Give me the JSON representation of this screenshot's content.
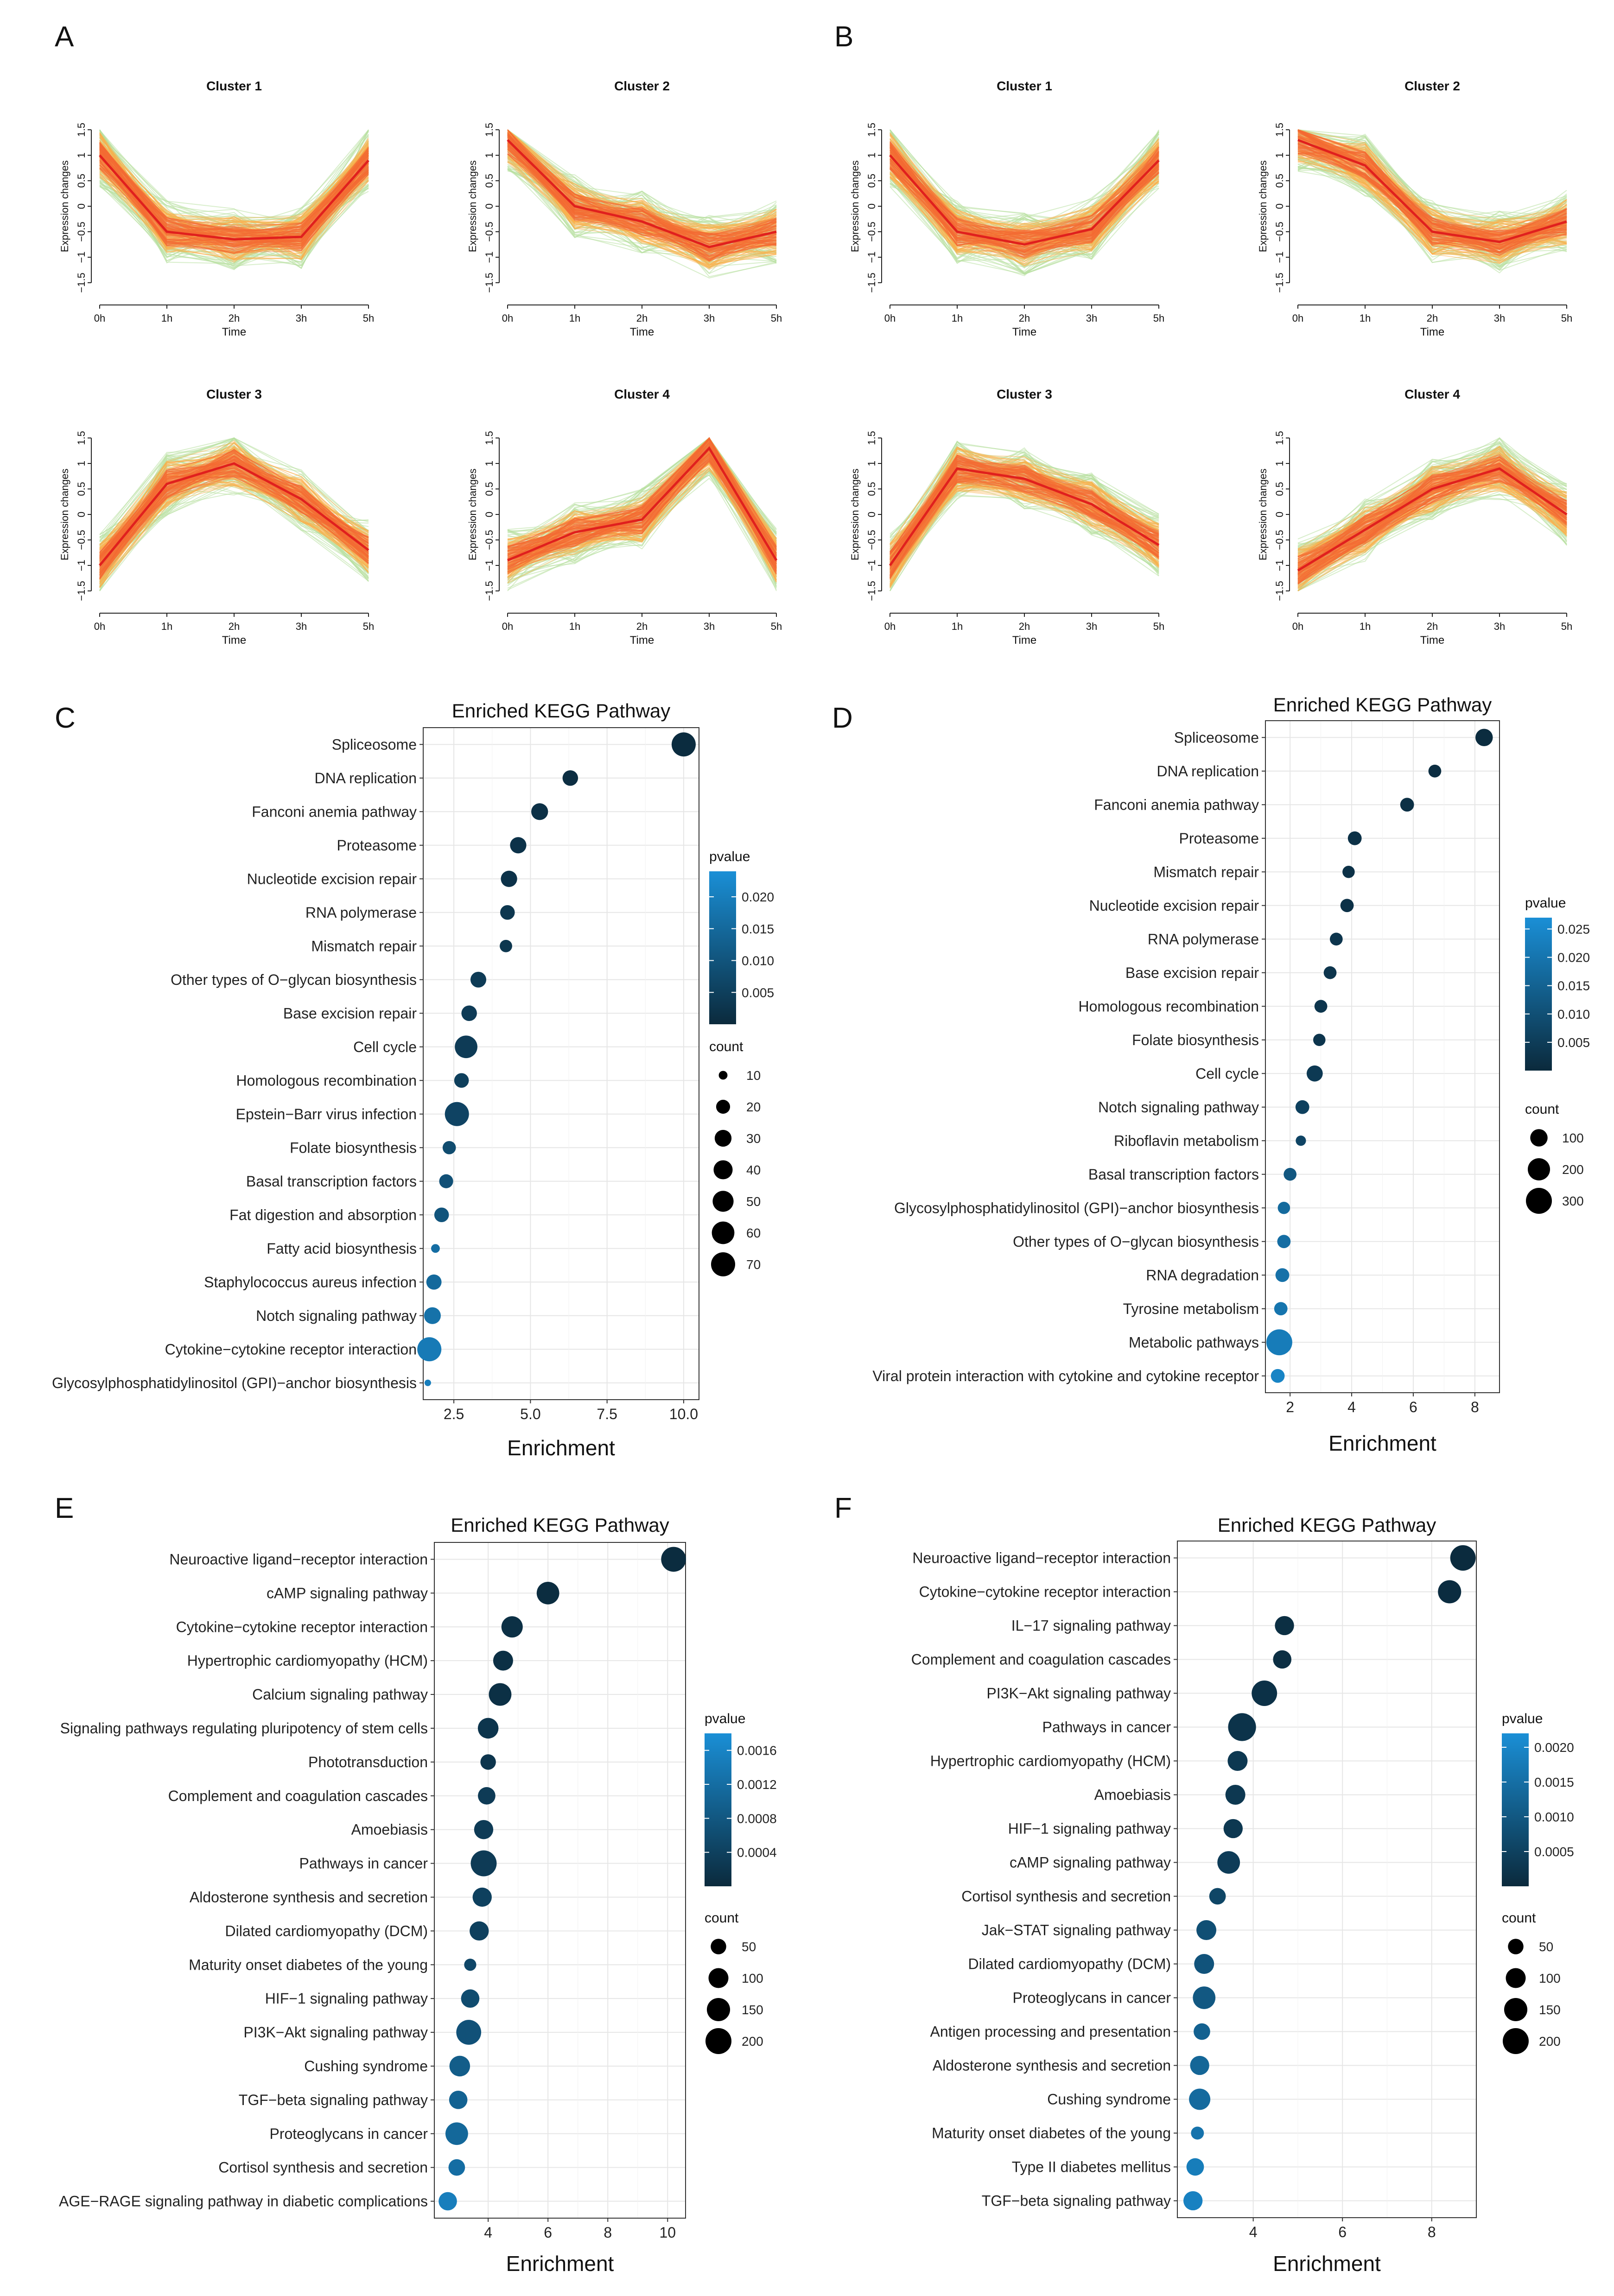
{
  "panels": [
    "A",
    "B",
    "C",
    "D",
    "E",
    "F"
  ],
  "cluster_common": {
    "ylabel": "Expression changes",
    "xlabel": "Time",
    "xticks": [
      "0h",
      "1h",
      "2h",
      "3h",
      "5h"
    ],
    "yticks": [
      "−1.5",
      "−1",
      "−0.5",
      "0",
      "0.5",
      "1",
      "1.5"
    ],
    "line_colors": {
      "center": "#e0201e",
      "inner": "#f36a33",
      "middle": "#fbb04a",
      "outer": "#b8e0a0"
    }
  },
  "colors": {
    "pvalue_high": "#1a8fd6",
    "pvalue_low": "#0b2a3c",
    "grid": "#e6e6e6",
    "panel_border": "#333333"
  },
  "chart_data": [
    {
      "panel": "A",
      "type": "line",
      "title": "Cluster 1",
      "xlabel": "Time",
      "ylabel": "Expression changes",
      "categories": [
        "0h",
        "1h",
        "2h",
        "3h",
        "5h"
      ],
      "ylim": [
        -1.5,
        1.5
      ],
      "values": [
        1.0,
        -0.5,
        -0.65,
        -0.6,
        0.9
      ]
    },
    {
      "panel": "A",
      "type": "line",
      "title": "Cluster 2",
      "xlabel": "Time",
      "ylabel": "Expression changes",
      "categories": [
        "0h",
        "1h",
        "2h",
        "3h",
        "5h"
      ],
      "ylim": [
        -1.5,
        1.5
      ],
      "values": [
        1.3,
        0.0,
        -0.3,
        -0.8,
        -0.5
      ]
    },
    {
      "panel": "A",
      "type": "line",
      "title": "Cluster 3",
      "xlabel": "Time",
      "ylabel": "Expression changes",
      "categories": [
        "0h",
        "1h",
        "2h",
        "3h",
        "5h"
      ],
      "ylim": [
        -1.5,
        1.5
      ],
      "values": [
        -1.0,
        0.6,
        1.0,
        0.3,
        -0.7
      ]
    },
    {
      "panel": "A",
      "type": "line",
      "title": "Cluster 4",
      "xlabel": "Time",
      "ylabel": "Expression changes",
      "categories": [
        "0h",
        "1h",
        "2h",
        "3h",
        "5h"
      ],
      "ylim": [
        -1.5,
        1.5
      ],
      "values": [
        -0.9,
        -0.35,
        -0.1,
        1.3,
        -0.9
      ]
    },
    {
      "panel": "B",
      "type": "line",
      "title": "Cluster 1",
      "xlabel": "Time",
      "ylabel": "Expression changes",
      "categories": [
        "0h",
        "1h",
        "2h",
        "3h",
        "5h"
      ],
      "ylim": [
        -1.5,
        1.5
      ],
      "values": [
        1.0,
        -0.5,
        -0.75,
        -0.45,
        0.9
      ]
    },
    {
      "panel": "B",
      "type": "line",
      "title": "Cluster 2",
      "xlabel": "Time",
      "ylabel": "Expression changes",
      "categories": [
        "0h",
        "1h",
        "2h",
        "3h",
        "5h"
      ],
      "ylim": [
        -1.5,
        1.5
      ],
      "values": [
        1.3,
        0.8,
        -0.5,
        -0.7,
        -0.3
      ]
    },
    {
      "panel": "B",
      "type": "line",
      "title": "Cluster 3",
      "xlabel": "Time",
      "ylabel": "Expression changes",
      "categories": [
        "0h",
        "1h",
        "2h",
        "3h",
        "5h"
      ],
      "ylim": [
        -1.5,
        1.5
      ],
      "values": [
        -1.0,
        0.9,
        0.7,
        0.2,
        -0.6
      ]
    },
    {
      "panel": "B",
      "type": "line",
      "title": "Cluster 4",
      "xlabel": "Time",
      "ylabel": "Expression changes",
      "categories": [
        "0h",
        "1h",
        "2h",
        "3h",
        "5h"
      ],
      "ylim": [
        -1.5,
        1.5
      ],
      "values": [
        -1.1,
        -0.3,
        0.5,
        0.9,
        0.0
      ]
    },
    {
      "panel": "C",
      "type": "scatter",
      "title": "Enriched KEGG Pathway",
      "xlabel": "Enrichment",
      "xlim": [
        1.5,
        10.5
      ],
      "xticks": [
        2.5,
        5.0,
        7.5,
        10.0
      ],
      "xtick_labels": [
        "2.5",
        "5.0",
        "7.5",
        "10.0"
      ],
      "pvalue_range": [
        0,
        0.024
      ],
      "pvalue_ticks": [
        0.02,
        0.015,
        0.01,
        0.005
      ],
      "pvalue_tick_labels": [
        "0.020",
        "0.015",
        "0.010",
        "0.005"
      ],
      "count_legend": [
        10,
        20,
        30,
        40,
        50,
        60,
        70
      ],
      "count_scale": [
        10,
        70
      ],
      "pathways": [
        {
          "name": "Spliceosome",
          "enrichment": 10.0,
          "count": 70,
          "pvalue": 0.0005
        },
        {
          "name": "DNA replication",
          "enrichment": 6.3,
          "count": 25,
          "pvalue": 0.001
        },
        {
          "name": "Fanconi anemia pathway",
          "enrichment": 5.3,
          "count": 30,
          "pvalue": 0.0015
        },
        {
          "name": "Proteasome",
          "enrichment": 4.6,
          "count": 28,
          "pvalue": 0.002
        },
        {
          "name": "Nucleotide excision repair",
          "enrichment": 4.3,
          "count": 28,
          "pvalue": 0.002
        },
        {
          "name": "RNA polymerase",
          "enrichment": 4.25,
          "count": 22,
          "pvalue": 0.003
        },
        {
          "name": "Mismatch repair",
          "enrichment": 4.2,
          "count": 16,
          "pvalue": 0.003
        },
        {
          "name": "Other types of O−glycan biosynthesis",
          "enrichment": 3.3,
          "count": 26,
          "pvalue": 0.004
        },
        {
          "name": "Base excision repair",
          "enrichment": 3.0,
          "count": 25,
          "pvalue": 0.004
        },
        {
          "name": "Cell cycle",
          "enrichment": 2.9,
          "count": 60,
          "pvalue": 0.004
        },
        {
          "name": "Homologous recombination",
          "enrichment": 2.75,
          "count": 22,
          "pvalue": 0.005
        },
        {
          "name": "Epstein−Barr virus infection",
          "enrichment": 2.6,
          "count": 70,
          "pvalue": 0.006
        },
        {
          "name": "Folate biosynthesis",
          "enrichment": 2.35,
          "count": 18,
          "pvalue": 0.008
        },
        {
          "name": "Basal transcription factors",
          "enrichment": 2.25,
          "count": 20,
          "pvalue": 0.009
        },
        {
          "name": "Fat digestion and absorption",
          "enrichment": 2.1,
          "count": 22,
          "pvalue": 0.01
        },
        {
          "name": "Fatty acid biosynthesis",
          "enrichment": 1.9,
          "count": 10,
          "pvalue": 0.016
        },
        {
          "name": "Staphylococcus aureus infection",
          "enrichment": 1.85,
          "count": 24,
          "pvalue": 0.015
        },
        {
          "name": "Notch signaling pathway",
          "enrichment": 1.8,
          "count": 30,
          "pvalue": 0.017
        },
        {
          "name": "Cytokine−cytokine receptor interaction",
          "enrichment": 1.7,
          "count": 70,
          "pvalue": 0.019
        },
        {
          "name": "Glycosylphosphatidylinositol (GPI)−anchor biosynthesis",
          "enrichment": 1.65,
          "count": 8,
          "pvalue": 0.02
        }
      ]
    },
    {
      "panel": "D",
      "type": "scatter",
      "title": "Enriched KEGG Pathway",
      "xlabel": "Enrichment",
      "xlim": [
        1.2,
        8.8
      ],
      "xticks": [
        2,
        4,
        6,
        8
      ],
      "xtick_labels": [
        "2",
        "4",
        "6",
        "8"
      ],
      "pvalue_range": [
        0,
        0.027
      ],
      "pvalue_ticks": [
        0.025,
        0.02,
        0.015,
        0.01,
        0.005
      ],
      "pvalue_tick_labels": [
        "0.025",
        "0.020",
        "0.015",
        "0.010",
        "0.005"
      ],
      "count_legend": [
        100,
        200,
        300
      ],
      "count_scale": [
        10,
        300
      ],
      "pathways": [
        {
          "name": "Spliceosome",
          "enrichment": 8.3,
          "count": 100,
          "pvalue": 0.0005
        },
        {
          "name": "DNA replication",
          "enrichment": 6.7,
          "count": 40,
          "pvalue": 0.001
        },
        {
          "name": "Fanconi anemia pathway",
          "enrichment": 5.8,
          "count": 50,
          "pvalue": 0.0015
        },
        {
          "name": "Proteasome",
          "enrichment": 4.1,
          "count": 50,
          "pvalue": 0.002
        },
        {
          "name": "Mismatch repair",
          "enrichment": 3.9,
          "count": 35,
          "pvalue": 0.002
        },
        {
          "name": "Nucleotide excision repair",
          "enrichment": 3.85,
          "count": 45,
          "pvalue": 0.002
        },
        {
          "name": "RNA polymerase",
          "enrichment": 3.5,
          "count": 40,
          "pvalue": 0.003
        },
        {
          "name": "Base excision repair",
          "enrichment": 3.3,
          "count": 40,
          "pvalue": 0.003
        },
        {
          "name": "Homologous recombination",
          "enrichment": 3.0,
          "count": 40,
          "pvalue": 0.003
        },
        {
          "name": "Folate biosynthesis",
          "enrichment": 2.95,
          "count": 35,
          "pvalue": 0.003
        },
        {
          "name": "Cell cycle",
          "enrichment": 2.8,
          "count": 80,
          "pvalue": 0.004
        },
        {
          "name": "Notch signaling pathway",
          "enrichment": 2.4,
          "count": 50,
          "pvalue": 0.006
        },
        {
          "name": "Riboflavin metabolism",
          "enrichment": 2.35,
          "count": 20,
          "pvalue": 0.007
        },
        {
          "name": "Basal transcription factors",
          "enrichment": 2.0,
          "count": 40,
          "pvalue": 0.012
        },
        {
          "name": "Glycosylphosphatidylinositol (GPI)−anchor biosynthesis",
          "enrichment": 1.8,
          "count": 35,
          "pvalue": 0.017
        },
        {
          "name": "Other types of O−glycan biosynthesis",
          "enrichment": 1.8,
          "count": 45,
          "pvalue": 0.018
        },
        {
          "name": "RNA degradation",
          "enrichment": 1.75,
          "count": 50,
          "pvalue": 0.019
        },
        {
          "name": "Tyrosine metabolism",
          "enrichment": 1.7,
          "count": 45,
          "pvalue": 0.02
        },
        {
          "name": "Metabolic pathways",
          "enrichment": 1.65,
          "count": 300,
          "pvalue": 0.022
        },
        {
          "name": "Viral protein interaction with cytokine and cytokine receptor",
          "enrichment": 1.6,
          "count": 50,
          "pvalue": 0.024
        }
      ]
    },
    {
      "panel": "E",
      "type": "scatter",
      "title": "Enriched KEGG Pathway",
      "xlabel": "Enrichment",
      "xlim": [
        2.2,
        10.6
      ],
      "xticks": [
        4,
        6,
        8,
        10
      ],
      "xtick_labels": [
        "4",
        "6",
        "8",
        "10"
      ],
      "pvalue_range": [
        0,
        0.0018
      ],
      "pvalue_ticks": [
        0.0016,
        0.0012,
        0.0008,
        0.0004
      ],
      "pvalue_tick_labels": [
        "0.0016",
        "0.0012",
        "0.0008",
        "0.0004"
      ],
      "count_legend": [
        50,
        100,
        150,
        200
      ],
      "count_scale": [
        10,
        200
      ],
      "pathways": [
        {
          "name": "Neuroactive ligand−receptor interaction",
          "enrichment": 10.2,
          "count": 180,
          "pvalue": 3e-05
        },
        {
          "name": "cAMP signaling pathway",
          "enrichment": 6.0,
          "count": 140,
          "pvalue": 5e-05
        },
        {
          "name": "Cytokine−cytokine receptor interaction",
          "enrichment": 4.8,
          "count": 120,
          "pvalue": 0.0001
        },
        {
          "name": "Hypertrophic cardiomyopathy (HCM)",
          "enrichment": 4.5,
          "count": 100,
          "pvalue": 0.0001
        },
        {
          "name": "Calcium signaling pathway",
          "enrichment": 4.4,
          "count": 140,
          "pvalue": 0.0001
        },
        {
          "name": "Signaling pathways regulating pluripotency of stem cells",
          "enrichment": 4.0,
          "count": 110,
          "pvalue": 0.0002
        },
        {
          "name": "Phototransduction",
          "enrichment": 4.0,
          "count": 50,
          "pvalue": 0.0002
        },
        {
          "name": "Complement and coagulation cascades",
          "enrichment": 3.95,
          "count": 70,
          "pvalue": 0.0003
        },
        {
          "name": "Amoebiasis",
          "enrichment": 3.85,
          "count": 90,
          "pvalue": 0.0003
        },
        {
          "name": "Pathways in cancer",
          "enrichment": 3.85,
          "count": 200,
          "pvalue": 0.0003
        },
        {
          "name": "Aldosterone synthesis and secretion",
          "enrichment": 3.8,
          "count": 90,
          "pvalue": 0.0004
        },
        {
          "name": "Dilated cardiomyopathy (DCM)",
          "enrichment": 3.7,
          "count": 90,
          "pvalue": 0.0004
        },
        {
          "name": "Maturity onset diabetes of the young",
          "enrichment": 3.4,
          "count": 25,
          "pvalue": 0.0005
        },
        {
          "name": "HIF−1 signaling pathway",
          "enrichment": 3.4,
          "count": 80,
          "pvalue": 0.0006
        },
        {
          "name": "PI3K−Akt signaling pathway",
          "enrichment": 3.35,
          "count": 180,
          "pvalue": 0.0007
        },
        {
          "name": "Cushing syndrome",
          "enrichment": 3.05,
          "count": 110,
          "pvalue": 0.0009
        },
        {
          "name": "TGF−beta signaling pathway",
          "enrichment": 3.0,
          "count": 80,
          "pvalue": 0.001
        },
        {
          "name": "Proteoglycans in cancer",
          "enrichment": 2.95,
          "count": 140,
          "pvalue": 0.0011
        },
        {
          "name": "Cortisol synthesis and secretion",
          "enrichment": 2.95,
          "count": 60,
          "pvalue": 0.0012
        },
        {
          "name": "AGE−RAGE signaling pathway in diabetic complications",
          "enrichment": 2.65,
          "count": 80,
          "pvalue": 0.0015
        }
      ]
    },
    {
      "panel": "F",
      "type": "scatter",
      "title": "Enriched KEGG Pathway",
      "xlabel": "Enrichment",
      "xlim": [
        2.3,
        9.0
      ],
      "xticks": [
        4,
        6,
        8
      ],
      "xtick_labels": [
        "4",
        "6",
        "8"
      ],
      "pvalue_range": [
        0,
        0.0022
      ],
      "pvalue_ticks": [
        0.002,
        0.0015,
        0.001,
        0.0005
      ],
      "pvalue_tick_labels": [
        "0.0020",
        "0.0015",
        "0.0010",
        "0.0005"
      ],
      "count_legend": [
        50,
        100,
        150,
        200
      ],
      "count_scale": [
        10,
        200
      ],
      "pathways": [
        {
          "name": "Neuroactive ligand−receptor interaction",
          "enrichment": 8.7,
          "count": 190,
          "pvalue": 3e-05
        },
        {
          "name": "Cytokine−cytokine receptor interaction",
          "enrichment": 8.4,
          "count": 150,
          "pvalue": 5e-05
        },
        {
          "name": "IL−17 signaling pathway",
          "enrichment": 4.7,
          "count": 90,
          "pvalue": 0.0001
        },
        {
          "name": "Complement and coagulation cascades",
          "enrichment": 4.65,
          "count": 80,
          "pvalue": 0.0001
        },
        {
          "name": "PI3K−Akt signaling pathway",
          "enrichment": 4.25,
          "count": 190,
          "pvalue": 0.00015
        },
        {
          "name": "Pathways in cancer",
          "enrichment": 3.75,
          "count": 240,
          "pvalue": 0.0002
        },
        {
          "name": "Hypertrophic cardiomyopathy (HCM)",
          "enrichment": 3.65,
          "count": 100,
          "pvalue": 0.0003
        },
        {
          "name": "Amoebiasis",
          "enrichment": 3.6,
          "count": 100,
          "pvalue": 0.0003
        },
        {
          "name": "HIF−1 signaling pathway",
          "enrichment": 3.55,
          "count": 90,
          "pvalue": 0.0003
        },
        {
          "name": "cAMP signaling pathway",
          "enrichment": 3.45,
          "count": 140,
          "pvalue": 0.0004
        },
        {
          "name": "Cortisol synthesis and secretion",
          "enrichment": 3.2,
          "count": 60,
          "pvalue": 0.0006
        },
        {
          "name": "Jak−STAT signaling pathway",
          "enrichment": 2.95,
          "count": 100,
          "pvalue": 0.0008
        },
        {
          "name": "Dilated cardiomyopathy (DCM)",
          "enrichment": 2.9,
          "count": 100,
          "pvalue": 0.0009
        },
        {
          "name": "Proteoglycans in cancer",
          "enrichment": 2.9,
          "count": 140,
          "pvalue": 0.001
        },
        {
          "name": "Antigen processing and presentation",
          "enrichment": 2.85,
          "count": 60,
          "pvalue": 0.0012
        },
        {
          "name": "Aldosterone synthesis and secretion",
          "enrichment": 2.8,
          "count": 90,
          "pvalue": 0.0013
        },
        {
          "name": "Cushing syndrome",
          "enrichment": 2.8,
          "count": 120,
          "pvalue": 0.0014
        },
        {
          "name": "Maturity onset diabetes of the young",
          "enrichment": 2.75,
          "count": 30,
          "pvalue": 0.0016
        },
        {
          "name": "Type II diabetes mellitus",
          "enrichment": 2.7,
          "count": 70,
          "pvalue": 0.0018
        },
        {
          "name": "TGF−beta signaling pathway",
          "enrichment": 2.65,
          "count": 90,
          "pvalue": 0.0019
        }
      ]
    }
  ],
  "legend_titles": {
    "pvalue": "pvalue",
    "count": "count"
  }
}
